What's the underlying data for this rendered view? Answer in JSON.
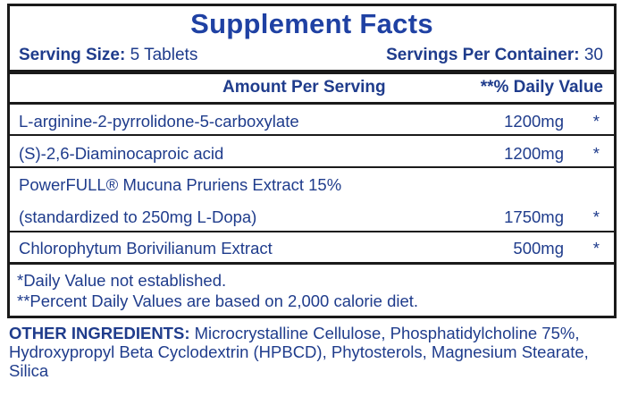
{
  "title": "Supplement Facts",
  "serving_size": {
    "label": "Serving Size:",
    "value": "5 Tablets"
  },
  "servings_per_container": {
    "label": "Servings Per Container:",
    "value": "30"
  },
  "columns": {
    "amount": "Amount Per Serving",
    "daily_value": "**% Daily Value"
  },
  "ingredients": [
    {
      "name": "L-arginine-2-pyrrolidone-5-carboxylate",
      "amount": "1200mg",
      "dv": "*"
    },
    {
      "name": "(S)-2,6-Diaminocaproic acid",
      "amount": "1200mg",
      "dv": "*"
    },
    {
      "name": "PowerFULL® Mucuna Pruriens Extract 15%",
      "name2": "(standardized to 250mg L-Dopa)",
      "amount": "1750mg",
      "dv": "*"
    },
    {
      "name": "Chlorophytum Borivilianum Extract",
      "amount": "500mg",
      "dv": "*"
    }
  ],
  "footnotes": [
    "*Daily Value not established.",
    "**Percent Daily Values are based on 2,000 calorie diet."
  ],
  "other_ingredients": {
    "label": "OTHER INGREDIENTS:",
    "text": " Microcrystalline Cellulose, Phosphatidylcholine 75%, Hydroxypropyl Beta Cyclodextrin (HPBCD), Phytosterols, Magnesium Stearate, Silica"
  },
  "colors": {
    "text": "#1f3c8c",
    "title": "#1f41a3",
    "border": "#1a1a1a"
  }
}
